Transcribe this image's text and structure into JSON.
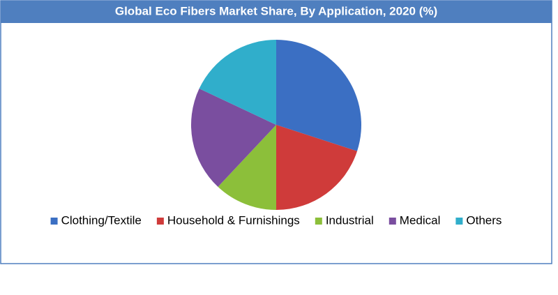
{
  "chart_data": {
    "type": "pie",
    "title": "Global Eco Fibers Market Share, By Application, 2020 (%)",
    "categories": [
      "Clothing/Textile",
      "Household & Furnishings",
      "Industrial",
      "Medical",
      "Others"
    ],
    "values": [
      30,
      20,
      12,
      20,
      18
    ],
    "colors": [
      "#3b6fc3",
      "#cf3b3a",
      "#8cbf3a",
      "#7a4e9f",
      "#30aecb"
    ],
    "legend": "bottom"
  }
}
